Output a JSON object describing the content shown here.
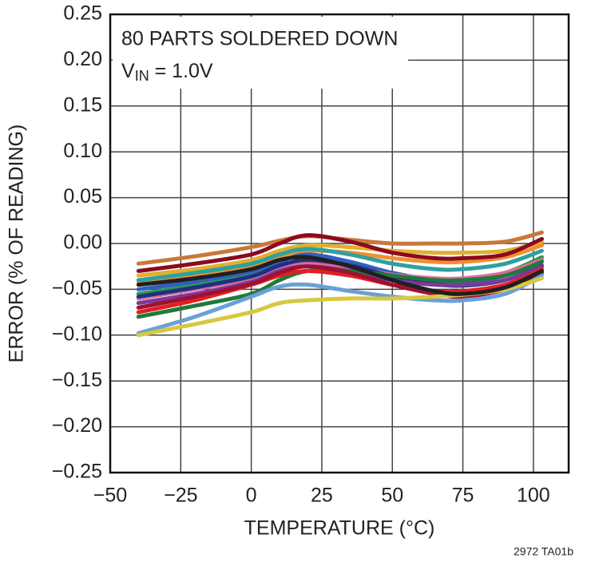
{
  "chart_data": {
    "type": "line",
    "x_label": "TEMPERATURE (°C)",
    "y_label": "ERROR (% OF READING)",
    "annotation_lines": [
      "80 PARTS SOLDERED DOWN",
      [
        "V",
        "IN",
        " = 1.0V"
      ]
    ],
    "footnote": "2972 TA01b",
    "xlim": [
      -50,
      112.5
    ],
    "ylim": [
      -0.25,
      0.25
    ],
    "xticks": [
      {
        "value": -50,
        "label": "−50"
      },
      {
        "value": -25,
        "label": "−25"
      },
      0,
      25,
      50,
      75,
      100
    ],
    "yticks": [
      {
        "value": -0.25,
        "label": "−0.25"
      },
      {
        "value": -0.2,
        "label": "−0.20"
      },
      {
        "value": -0.15,
        "label": "−0.15"
      },
      {
        "value": -0.1,
        "label": "−0.10"
      },
      {
        "value": -0.05,
        "label": "−0.05"
      },
      {
        "value": 0,
        "label": "0.00"
      },
      0.05,
      {
        "value": 0.1,
        "label": "0.10"
      },
      0.15,
      {
        "value": 0.2,
        "label": "0.20"
      },
      0.25
    ],
    "grid": true,
    "x": [
      -40,
      -20,
      0,
      10,
      20,
      35,
      50,
      65,
      75,
      90,
      103
    ],
    "series": [
      {
        "color": "#c8783a",
        "values": [
          -0.022,
          -0.014,
          -0.004,
          0.003,
          0.008,
          0.004,
          0.0,
          0.0,
          0.0,
          0.002,
          0.012
        ]
      },
      {
        "color": "#e0b030",
        "values": [
          -0.035,
          -0.028,
          -0.018,
          -0.008,
          -0.002,
          -0.004,
          -0.008,
          -0.01,
          -0.01,
          -0.008,
          0.002
        ]
      },
      {
        "color": "#f09030",
        "values": [
          -0.042,
          -0.034,
          -0.024,
          -0.014,
          -0.008,
          -0.01,
          -0.016,
          -0.02,
          -0.02,
          -0.015,
          -0.002
        ]
      },
      {
        "color": "#30a0a0",
        "values": [
          -0.04,
          -0.032,
          -0.022,
          -0.012,
          -0.006,
          -0.012,
          -0.022,
          -0.028,
          -0.028,
          -0.022,
          -0.008
        ]
      },
      {
        "color": "#3060c0",
        "values": [
          -0.05,
          -0.042,
          -0.032,
          -0.02,
          -0.012,
          -0.02,
          -0.032,
          -0.04,
          -0.042,
          -0.035,
          -0.018
        ]
      },
      {
        "color": "#2a9a50",
        "values": [
          -0.055,
          -0.046,
          -0.035,
          -0.025,
          -0.018,
          -0.025,
          -0.035,
          -0.04,
          -0.04,
          -0.032,
          -0.015
        ]
      },
      {
        "color": "#e06a9a",
        "values": [
          -0.06,
          -0.05,
          -0.038,
          -0.028,
          -0.022,
          -0.026,
          -0.034,
          -0.038,
          -0.038,
          -0.032,
          -0.018
        ]
      },
      {
        "color": "#203080",
        "values": [
          -0.058,
          -0.048,
          -0.036,
          -0.024,
          -0.018,
          -0.024,
          -0.036,
          -0.044,
          -0.046,
          -0.04,
          -0.024
        ]
      },
      {
        "color": "#7a3a9a",
        "values": [
          -0.065,
          -0.055,
          -0.042,
          -0.03,
          -0.025,
          -0.03,
          -0.04,
          -0.045,
          -0.045,
          -0.04,
          -0.025
        ]
      },
      {
        "color": "#1f7a3a",
        "values": [
          -0.08,
          -0.068,
          -0.055,
          -0.04,
          -0.03,
          -0.03,
          -0.035,
          -0.04,
          -0.04,
          -0.035,
          -0.02
        ]
      },
      {
        "color": "#e02020",
        "values": [
          -0.075,
          -0.062,
          -0.045,
          -0.035,
          -0.03,
          -0.035,
          -0.045,
          -0.052,
          -0.052,
          -0.045,
          -0.028
        ]
      },
      {
        "color": "#a01030",
        "values": [
          -0.07,
          -0.058,
          -0.044,
          -0.032,
          -0.025,
          -0.032,
          -0.045,
          -0.055,
          -0.058,
          -0.05,
          -0.032
        ]
      },
      {
        "color": "#6aa0d8",
        "values": [
          -0.098,
          -0.08,
          -0.058,
          -0.047,
          -0.045,
          -0.052,
          -0.058,
          -0.062,
          -0.062,
          -0.055,
          -0.035
        ]
      },
      {
        "color": "#d8c840",
        "values": [
          -0.1,
          -0.088,
          -0.075,
          -0.065,
          -0.062,
          -0.06,
          -0.06,
          -0.058,
          -0.056,
          -0.05,
          -0.038
        ]
      },
      {
        "color": "#202020",
        "values": [
          -0.045,
          -0.038,
          -0.028,
          -0.018,
          -0.015,
          -0.025,
          -0.04,
          -0.052,
          -0.055,
          -0.048,
          -0.03
        ]
      },
      {
        "color": "#8b0a1e",
        "values": [
          -0.03,
          -0.022,
          -0.012,
          0.0,
          0.009,
          0.002,
          -0.01,
          -0.016,
          -0.016,
          -0.012,
          0.005
        ]
      }
    ]
  }
}
